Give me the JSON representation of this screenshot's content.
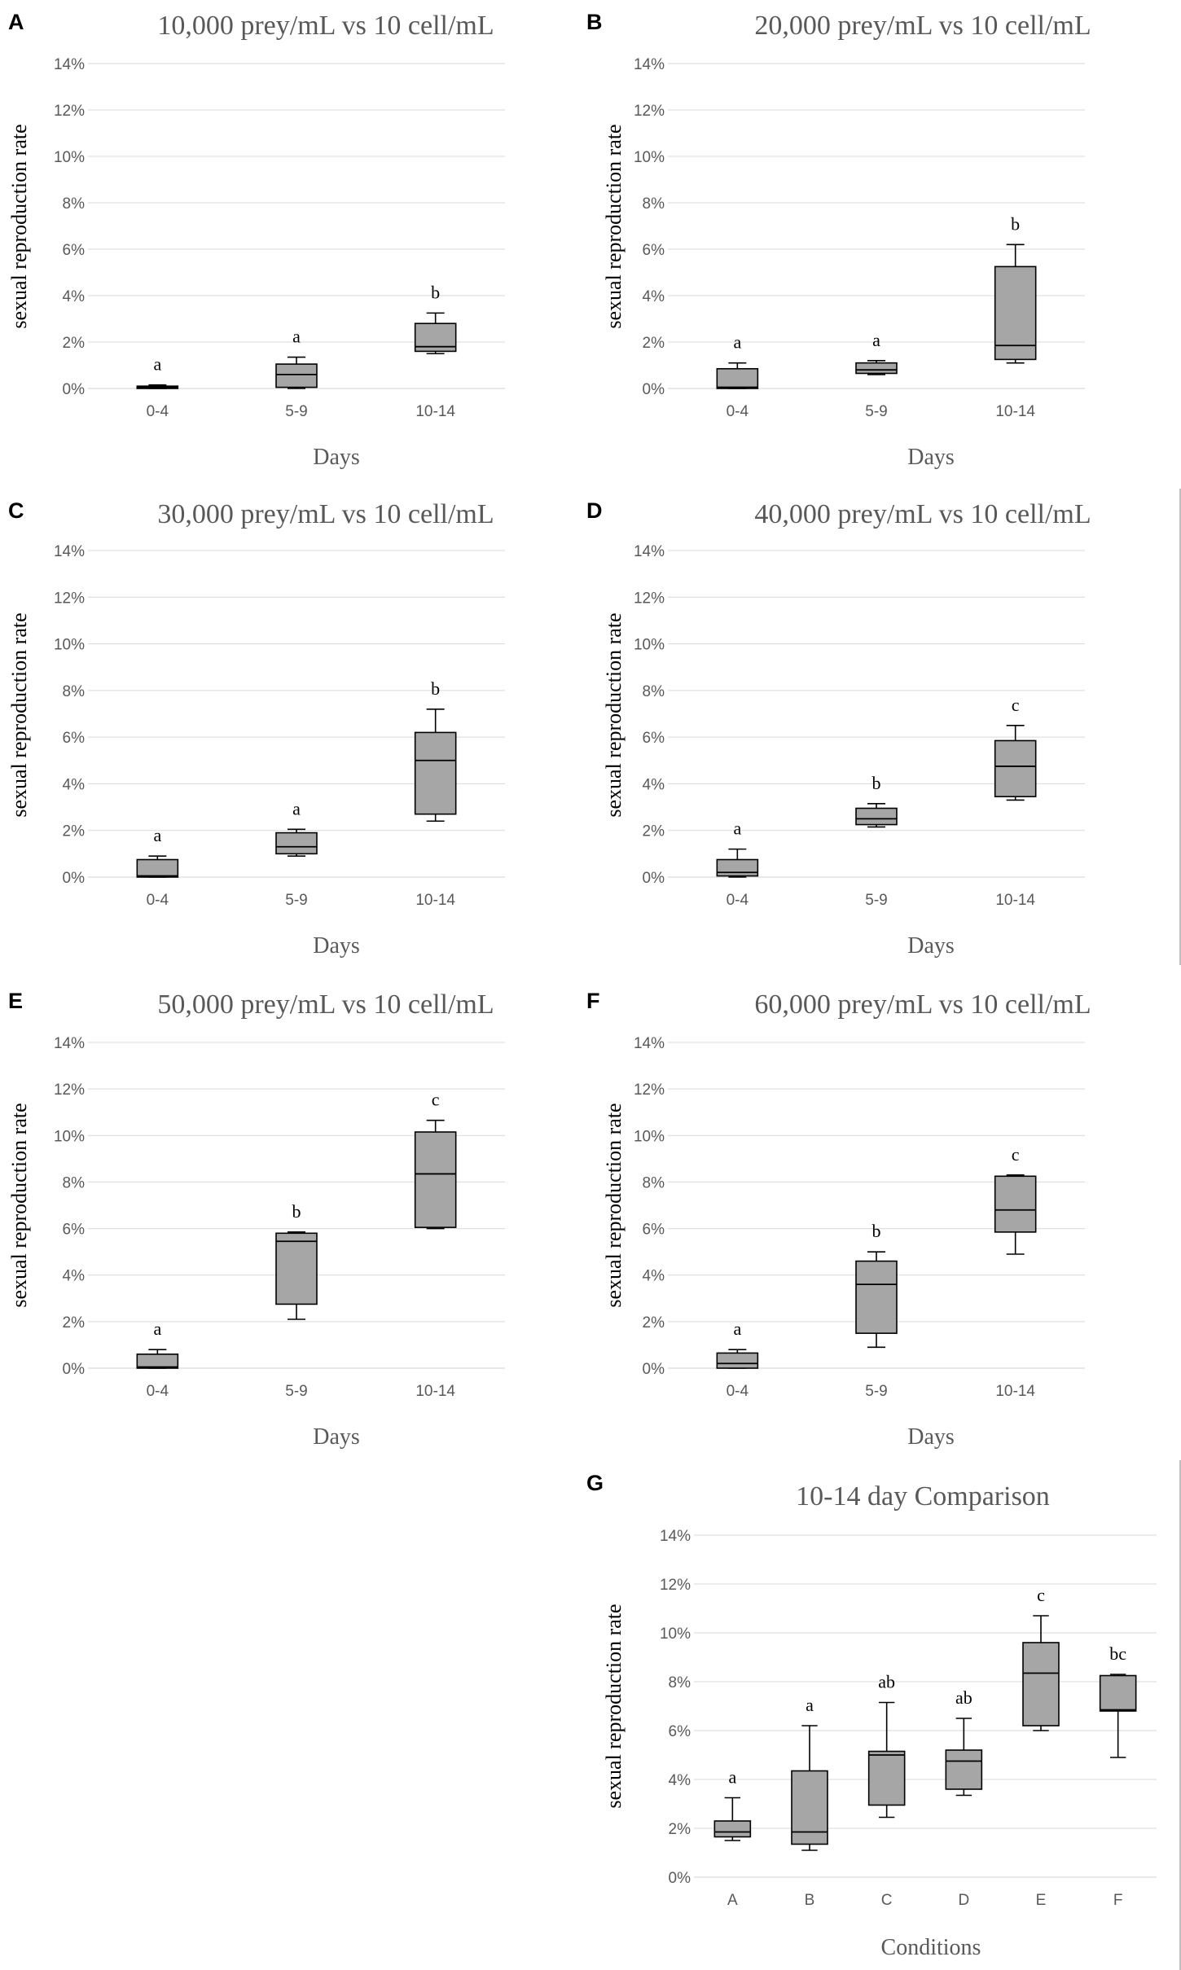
{
  "chart_data": [
    {
      "panel": "A",
      "type": "box",
      "title": "10,000  prey/mL  vs 10 cell/mL",
      "xlabel": "Days",
      "ylabel": "sexual reproduction rate",
      "ylim": [
        0,
        14
      ],
      "yticks": [
        "0%",
        "2%",
        "4%",
        "6%",
        "8%",
        "10%",
        "12%",
        "14%"
      ],
      "categories": [
        "0-4",
        "5-9",
        "10-14"
      ],
      "boxes": [
        {
          "min": 0.0,
          "q1": 0.0,
          "median": 0.05,
          "q3": 0.1,
          "max": 0.15
        },
        {
          "min": 0.0,
          "q1": 0.05,
          "median": 0.6,
          "q3": 1.05,
          "max": 1.35
        },
        {
          "min": 1.5,
          "q1": 1.6,
          "median": 1.8,
          "q3": 2.8,
          "max": 3.25
        }
      ],
      "labels": [
        "a",
        "a",
        "b"
      ]
    },
    {
      "panel": "B",
      "type": "box",
      "title": "20,000  prey/mL  vs 10 cell/mL",
      "xlabel": "Days",
      "ylabel": "sexual reproduction rate",
      "ylim": [
        0,
        14
      ],
      "yticks": [
        "0%",
        "2%",
        "4%",
        "6%",
        "8%",
        "10%",
        "12%",
        "14%"
      ],
      "categories": [
        "0-4",
        "5-9",
        "10-14"
      ],
      "boxes": [
        {
          "min": 0.0,
          "q1": 0.0,
          "median": 0.05,
          "q3": 0.85,
          "max": 1.1
        },
        {
          "min": 0.6,
          "q1": 0.65,
          "median": 0.8,
          "q3": 1.1,
          "max": 1.2
        },
        {
          "min": 1.1,
          "q1": 1.25,
          "median": 1.85,
          "q3": 5.25,
          "max": 6.2
        }
      ],
      "labels": [
        "a",
        "a",
        "b"
      ]
    },
    {
      "panel": "C",
      "type": "box",
      "title": "30,000  prey/mL  vs 10 cell/mL",
      "xlabel": "Days",
      "ylabel": "sexual reproduction rate",
      "ylim": [
        0,
        14
      ],
      "yticks": [
        "0%",
        "2%",
        "4%",
        "6%",
        "8%",
        "10%",
        "12%",
        "14%"
      ],
      "categories": [
        "0-4",
        "5-9",
        "10-14"
      ],
      "boxes": [
        {
          "min": 0.0,
          "q1": 0.0,
          "median": 0.05,
          "q3": 0.75,
          "max": 0.9
        },
        {
          "min": 0.9,
          "q1": 1.0,
          "median": 1.3,
          "q3": 1.9,
          "max": 2.05
        },
        {
          "min": 2.4,
          "q1": 2.7,
          "median": 5.0,
          "q3": 6.2,
          "max": 7.2
        }
      ],
      "labels": [
        "a",
        "a",
        "b"
      ]
    },
    {
      "panel": "D",
      "type": "box",
      "title": "40,000  prey/mL  vs 10 cell/mL",
      "xlabel": "Days",
      "ylabel": "sexual reproduction rate",
      "ylim": [
        0,
        14
      ],
      "yticks": [
        "0%",
        "2%",
        "4%",
        "6%",
        "8%",
        "10%",
        "12%",
        "14%"
      ],
      "categories": [
        "0-4",
        "5-9",
        "10-14"
      ],
      "boxes": [
        {
          "min": 0.0,
          "q1": 0.05,
          "median": 0.2,
          "q3": 0.75,
          "max": 1.2
        },
        {
          "min": 2.15,
          "q1": 2.25,
          "median": 2.5,
          "q3": 2.95,
          "max": 3.15
        },
        {
          "min": 3.3,
          "q1": 3.45,
          "median": 4.75,
          "q3": 5.85,
          "max": 6.5
        }
      ],
      "labels": [
        "a",
        "b",
        "c"
      ]
    },
    {
      "panel": "E",
      "type": "box",
      "title": "50,000  prey/mL  vs 10 cell/mL",
      "xlabel": "Days",
      "ylabel": "sexual reproduction rate",
      "ylim": [
        0,
        14
      ],
      "yticks": [
        "0%",
        "2%",
        "4%",
        "6%",
        "8%",
        "10%",
        "12%",
        "14%"
      ],
      "categories": [
        "0-4",
        "5-9",
        "10-14"
      ],
      "boxes": [
        {
          "min": 0.0,
          "q1": 0.0,
          "median": 0.05,
          "q3": 0.6,
          "max": 0.8
        },
        {
          "min": 2.1,
          "q1": 2.75,
          "median": 5.45,
          "q3": 5.8,
          "max": 5.85
        },
        {
          "min": 6.0,
          "q1": 6.05,
          "median": 8.35,
          "q3": 10.15,
          "max": 10.65
        }
      ],
      "labels": [
        "a",
        "b",
        "c"
      ]
    },
    {
      "panel": "F",
      "type": "box",
      "title": "60,000  prey/mL  vs 10 cell/mL",
      "xlabel": "Days",
      "ylabel": "sexual reproduction rate",
      "ylim": [
        0,
        14
      ],
      "yticks": [
        "0%",
        "2%",
        "4%",
        "6%",
        "8%",
        "10%",
        "12%",
        "14%"
      ],
      "categories": [
        "0-4",
        "5-9",
        "10-14"
      ],
      "boxes": [
        {
          "min": 0.0,
          "q1": 0.0,
          "median": 0.2,
          "q3": 0.65,
          "max": 0.8
        },
        {
          "min": 0.9,
          "q1": 1.5,
          "median": 3.6,
          "q3": 4.6,
          "max": 5.0
        },
        {
          "min": 4.9,
          "q1": 5.85,
          "median": 6.8,
          "q3": 8.25,
          "max": 8.3
        }
      ],
      "labels": [
        "a",
        "b",
        "c"
      ]
    },
    {
      "panel": "G",
      "type": "box",
      "title": "10-14 day Comparison",
      "xlabel": "Conditions",
      "ylabel": "sexual reproduction rate",
      "ylim": [
        0,
        14
      ],
      "yticks": [
        "0%",
        "2%",
        "4%",
        "6%",
        "8%",
        "10%",
        "12%",
        "14%"
      ],
      "categories": [
        "A",
        "B",
        "C",
        "D",
        "E",
        "F"
      ],
      "boxes": [
        {
          "min": 1.5,
          "q1": 1.65,
          "median": 1.85,
          "q3": 2.3,
          "max": 3.25
        },
        {
          "min": 1.1,
          "q1": 1.35,
          "median": 1.85,
          "q3": 4.35,
          "max": 6.2
        },
        {
          "min": 2.45,
          "q1": 2.95,
          "median": 5.0,
          "q3": 5.15,
          "max": 7.15
        },
        {
          "min": 3.35,
          "q1": 3.6,
          "median": 4.75,
          "q3": 5.2,
          "max": 6.5
        },
        {
          "min": 6.0,
          "q1": 6.2,
          "median": 8.35,
          "q3": 9.6,
          "max": 10.7
        },
        {
          "min": 4.9,
          "q1": 6.8,
          "median": 6.85,
          "q3": 8.25,
          "max": 8.3
        }
      ],
      "labels": [
        "a",
        "a",
        "ab",
        "ab",
        "c",
        "bc"
      ]
    }
  ]
}
